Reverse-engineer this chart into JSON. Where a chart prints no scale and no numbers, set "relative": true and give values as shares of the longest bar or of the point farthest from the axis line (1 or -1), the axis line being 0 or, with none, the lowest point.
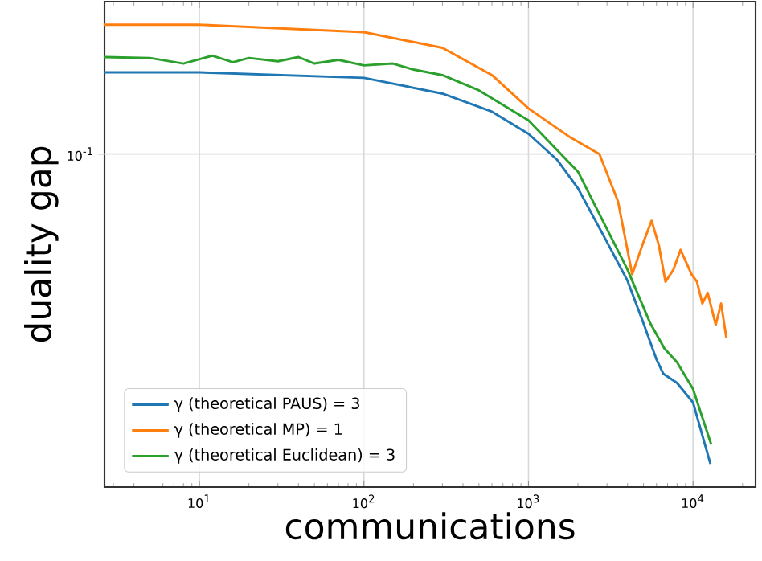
{
  "chart_data": {
    "type": "line",
    "xlabel": "communications",
    "ylabel": "duality gap",
    "log": "x",
    "grid": "x",
    "legend": "bottom left",
    "relative": true,
    "annotations": [
      "10$^{-1}$"
    ],
    "xlim": [
      2.65,
      24000
    ],
    "xticks": [
      {
        "value": 3,
        "label": null
      },
      {
        "value": 4,
        "label": null
      },
      {
        "value": 5,
        "label": null
      },
      {
        "value": 6,
        "label": null
      },
      {
        "value": 7,
        "label": null
      },
      {
        "value": 8,
        "label": null
      },
      {
        "value": 9,
        "label": null
      },
      {
        "value": 10,
        "label": "10$^{1}$"
      },
      {
        "value": 20,
        "label": null
      },
      {
        "value": 30,
        "label": null
      },
      {
        "value": 40,
        "label": null
      },
      {
        "value": 50,
        "label": null
      },
      {
        "value": 60,
        "label": null
      },
      {
        "value": 70,
        "label": null
      },
      {
        "value": 80,
        "label": null
      },
      {
        "value": 90,
        "label": null
      },
      {
        "value": 100,
        "label": "10$^{2}$"
      },
      {
        "value": 200,
        "label": null
      },
      {
        "value": 300,
        "label": null
      },
      {
        "value": 400,
        "label": null
      },
      {
        "value": 500,
        "label": null
      },
      {
        "value": 600,
        "label": null
      },
      {
        "value": 700,
        "label": null
      },
      {
        "value": 800,
        "label": null
      },
      {
        "value": 900,
        "label": null
      },
      {
        "value": 1000,
        "label": "10$^{3}$"
      },
      {
        "value": 2000,
        "label": null
      },
      {
        "value": 3000,
        "label": null
      },
      {
        "value": 4000,
        "label": null
      },
      {
        "value": 5000,
        "label": null
      },
      {
        "value": 6000,
        "label": null
      },
      {
        "value": 7000,
        "label": null
      },
      {
        "value": 8000,
        "label": null
      },
      {
        "value": 9000,
        "label": null
      },
      {
        "value": 10000,
        "label": "10$^{4}$"
      },
      {
        "value": 20000,
        "label": null
      }
    ],
    "series": [
      {
        "name": "γ (theoretical PAUS) = 3",
        "color": "#1f77b4",
        "x": [
          2.65,
          10,
          100,
          300,
          600,
          1000,
          1500,
          2000,
          3000,
          4000,
          5000,
          6000,
          6600,
          8000,
          10000,
          12760
        ],
        "values": [
          0.897,
          0.897,
          0.885,
          0.851,
          0.812,
          0.764,
          0.707,
          0.646,
          0.53,
          0.446,
          0.354,
          0.276,
          0.245,
          0.225,
          0.183,
          0.05
        ]
      },
      {
        "name": "γ (theoretical MP) = 1",
        "color": "#ff7f0e",
        "x": [
          2.65,
          10,
          100,
          300,
          600,
          1000,
          1800,
          2700,
          3500,
          4270,
          5000,
          5600,
          6200,
          6800,
          7600,
          8400,
          9800,
          10570,
          11400,
          12280,
          13740,
          14820,
          15960
        ],
        "values": [
          1,
          1,
          0.984,
          0.95,
          0.891,
          0.819,
          0.756,
          0.72,
          0.618,
          0.46,
          0.53,
          0.576,
          0.523,
          0.444,
          0.47,
          0.513,
          0.46,
          0.444,
          0.397,
          0.42,
          0.351,
          0.397,
          0.322
        ]
      },
      {
        "name": "γ (theoretical Euclidean) = 3",
        "color": "#2ca02c",
        "x": [
          2.65,
          5,
          8,
          12,
          16,
          20,
          30,
          40,
          50,
          70,
          100,
          150,
          200,
          300,
          500,
          1000,
          2000,
          4000,
          5500,
          6700,
          8000,
          10000,
          12900
        ],
        "values": [
          0.93,
          0.928,
          0.916,
          0.933,
          0.919,
          0.928,
          0.921,
          0.93,
          0.916,
          0.924,
          0.912,
          0.916,
          0.903,
          0.891,
          0.858,
          0.793,
          0.682,
          0.47,
          0.354,
          0.3,
          0.27,
          0.212,
          0.092
        ]
      }
    ]
  }
}
